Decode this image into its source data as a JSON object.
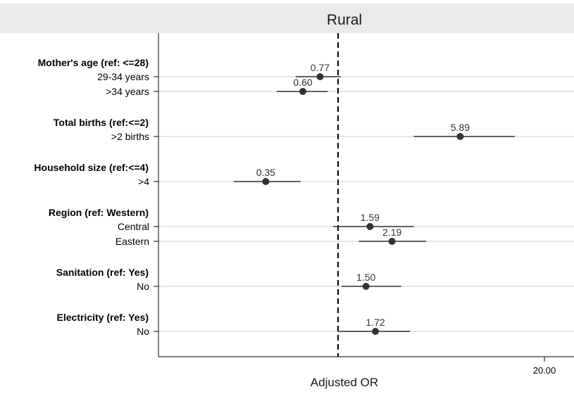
{
  "chart_data": {
    "type": "forest",
    "title": "Rural",
    "xlabel": "Adjusted OR",
    "x_scale": "log",
    "x_ticks": [
      {
        "value": 20,
        "label": "20.00"
      }
    ],
    "reference_line": 1,
    "grid": true,
    "groups": [
      {
        "label": "Mother's age (ref: <=28)",
        "rows": [
          {
            "label": "29-34 years",
            "or": 0.77,
            "ci": [
              0.54,
              1.04
            ],
            "or_label": "0.77"
          },
          {
            "label": ">34 years",
            "or": 0.6,
            "ci": [
              0.41,
              0.86
            ],
            "or_label": "0.60"
          }
        ]
      },
      {
        "label": "Total births (ref:<=2)",
        "rows": [
          {
            "label": ">2 births",
            "or": 5.89,
            "ci": [
              3.0,
              13.0
            ],
            "or_label": "5.89"
          }
        ]
      },
      {
        "label": "Household size (ref:<=4)",
        "rows": [
          {
            "label": ">4",
            "or": 0.35,
            "ci": [
              0.22,
              0.58
            ],
            "or_label": "0.35"
          }
        ]
      },
      {
        "label": "Region (ref: Western)",
        "rows": [
          {
            "label": "Central",
            "or": 1.59,
            "ci": [
              0.93,
              3.0
            ],
            "or_label": "1.59"
          },
          {
            "label": "Eastern",
            "or": 2.19,
            "ci": [
              1.35,
              3.6
            ],
            "or_label": "2.19"
          }
        ]
      },
      {
        "label": "Sanitation (ref: Yes)",
        "rows": [
          {
            "label": "No",
            "or": 1.5,
            "ci": [
              1.05,
              2.5
            ],
            "or_label": "1.50"
          }
        ]
      },
      {
        "label": "Electricity (ref: Yes)",
        "rows": [
          {
            "label": "No",
            "or": 1.72,
            "ci": [
              1.0,
              2.85
            ],
            "or_label": "1.72"
          }
        ]
      }
    ],
    "colors": {
      "marker": "#333333",
      "ci_line": "#333333",
      "grid": "#e6e6e6",
      "title_strip": "#eaeaea",
      "text": "#000000",
      "value_label": "#333333"
    }
  }
}
